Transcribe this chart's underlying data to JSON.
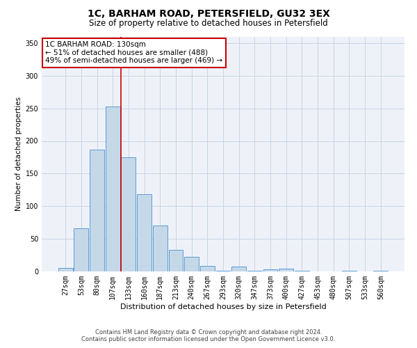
{
  "title": "1C, BARHAM ROAD, PETERSFIELD, GU32 3EX",
  "subtitle": "Size of property relative to detached houses in Petersfield",
  "xlabel": "Distribution of detached houses by size in Petersfield",
  "ylabel": "Number of detached properties",
  "categories": [
    "27sqm",
    "53sqm",
    "80sqm",
    "107sqm",
    "133sqm",
    "160sqm",
    "187sqm",
    "213sqm",
    "240sqm",
    "267sqm",
    "293sqm",
    "320sqm",
    "347sqm",
    "373sqm",
    "400sqm",
    "427sqm",
    "453sqm",
    "480sqm",
    "507sqm",
    "533sqm",
    "560sqm"
  ],
  "values": [
    5,
    66,
    187,
    253,
    175,
    118,
    70,
    33,
    22,
    9,
    1,
    8,
    1,
    3,
    4,
    1,
    0,
    0,
    1,
    0,
    1
  ],
  "bar_color": "#c5d8e8",
  "bar_edge_color": "#5b9bd5",
  "bar_edge_width": 0.7,
  "grid_color": "#c8d4e4",
  "bg_color": "#eef2f8",
  "property_line_bar_index": 4,
  "property_line_color": "#cc0000",
  "annotation_line1": "1C BARHAM ROAD: 130sqm",
  "annotation_line2": "← 51% of detached houses are smaller (488)",
  "annotation_line3": "49% of semi-detached houses are larger (469) →",
  "annotation_box_color": "#cc0000",
  "footer_line1": "Contains HM Land Registry data © Crown copyright and database right 2024.",
  "footer_line2": "Contains public sector information licensed under the Open Government Licence v3.0.",
  "ylim": [
    0,
    360
  ],
  "yticks": [
    0,
    50,
    100,
    150,
    200,
    250,
    300,
    350
  ],
  "title_fontsize": 10,
  "subtitle_fontsize": 8.5,
  "xlabel_fontsize": 8,
  "ylabel_fontsize": 7.5,
  "tick_fontsize": 7,
  "footer_fontsize": 6,
  "annotation_fontsize": 7.5
}
